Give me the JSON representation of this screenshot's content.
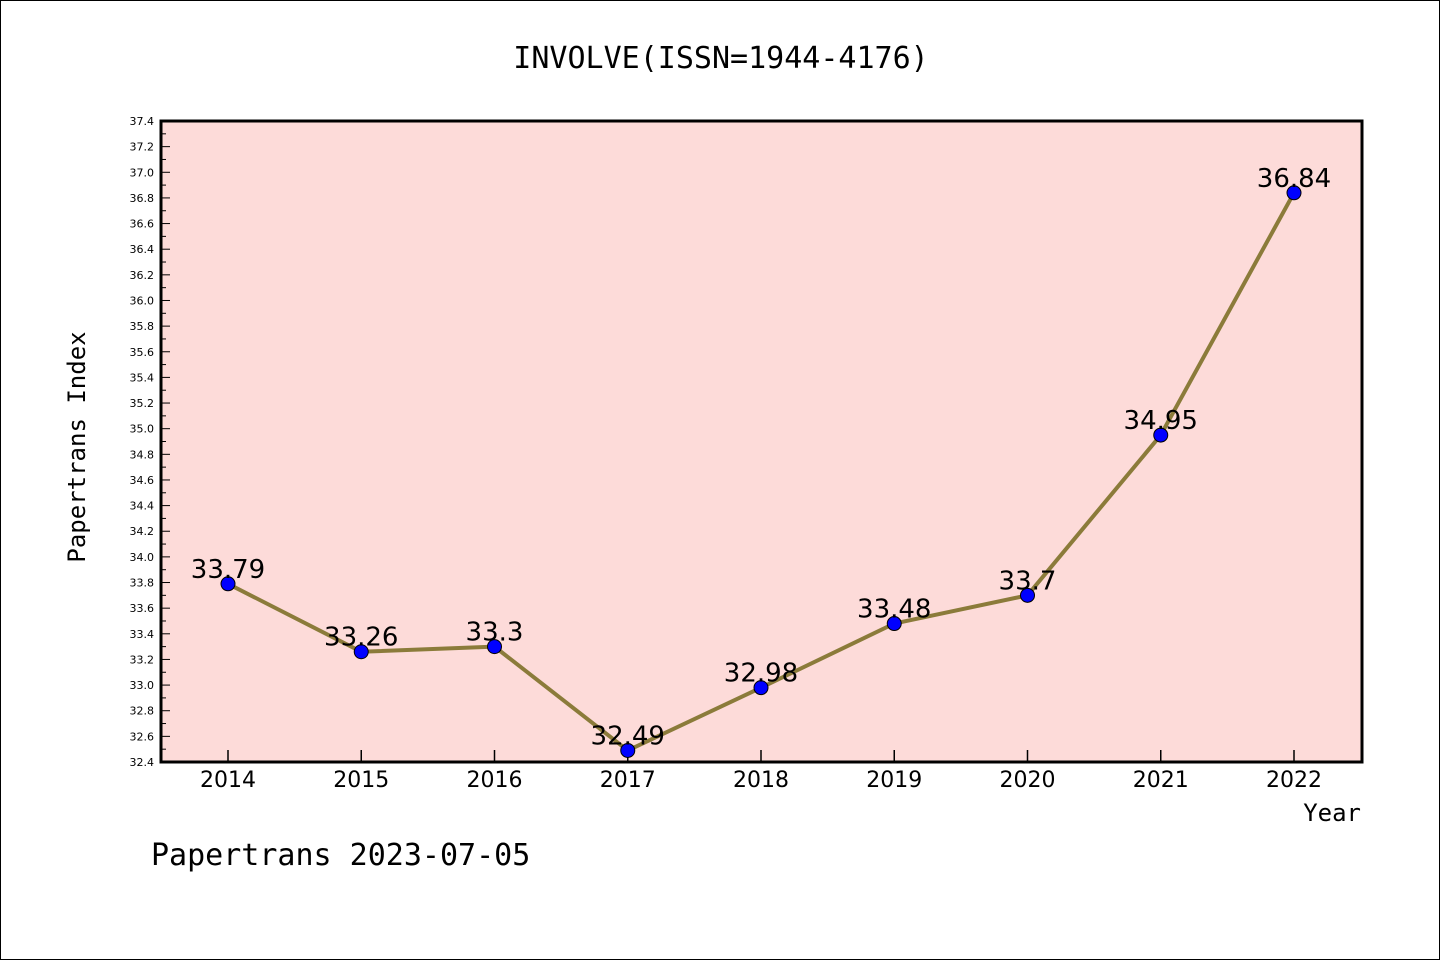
{
  "chart_data": {
    "type": "line",
    "title": "INVOLVE(ISSN=1944-4176)",
    "xlabel": "Year",
    "ylabel": "Papertrans Index",
    "categories": [
      "2014",
      "2015",
      "2016",
      "2017",
      "2018",
      "2019",
      "2020",
      "2021",
      "2022"
    ],
    "values": [
      33.79,
      33.26,
      33.3,
      32.49,
      32.98,
      33.48,
      33.7,
      34.95,
      36.84
    ],
    "data_labels": [
      "33.79",
      "33.26",
      "33.3",
      "32.49",
      "32.98",
      "33.48",
      "33.7",
      "34.95",
      "36.84"
    ],
    "ylim": [
      32.4,
      37.4
    ],
    "yticks": [
      "32.4",
      "32.6",
      "32.8",
      "33.0",
      "33.2",
      "33.4",
      "33.6",
      "33.8",
      "34.0",
      "34.2",
      "34.4",
      "34.6",
      "34.8",
      "35.0",
      "35.2",
      "35.4",
      "35.6",
      "35.8",
      "36.0",
      "36.2",
      "36.4",
      "36.6",
      "36.8",
      "37.0",
      "37.2",
      "37.4"
    ],
    "grid": false,
    "legend": "none",
    "colors": {
      "plot_background": "#fddbd9",
      "line": "#8b7b3a",
      "marker": "#0000ff"
    }
  },
  "footer": "Papertrans 2023-07-05"
}
